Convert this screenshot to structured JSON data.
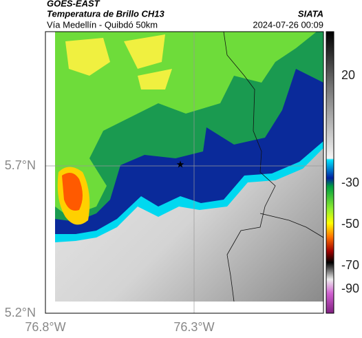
{
  "header": {
    "source": "GOES-EAST",
    "title": "Temperatura de Brillo CH13",
    "brand": "SIATA",
    "subtitle": "Vía Medellín - Quibdó 50km",
    "timestamp": "2024-07-26 00:09"
  },
  "axes": {
    "lat_labels": [
      "5.7°N",
      "5.2°N"
    ],
    "lon_labels": [
      "76.8°W",
      "76.3°W"
    ]
  },
  "colorbar": {
    "ticks": [
      20,
      -30,
      -50,
      -70,
      -90
    ]
  }
}
